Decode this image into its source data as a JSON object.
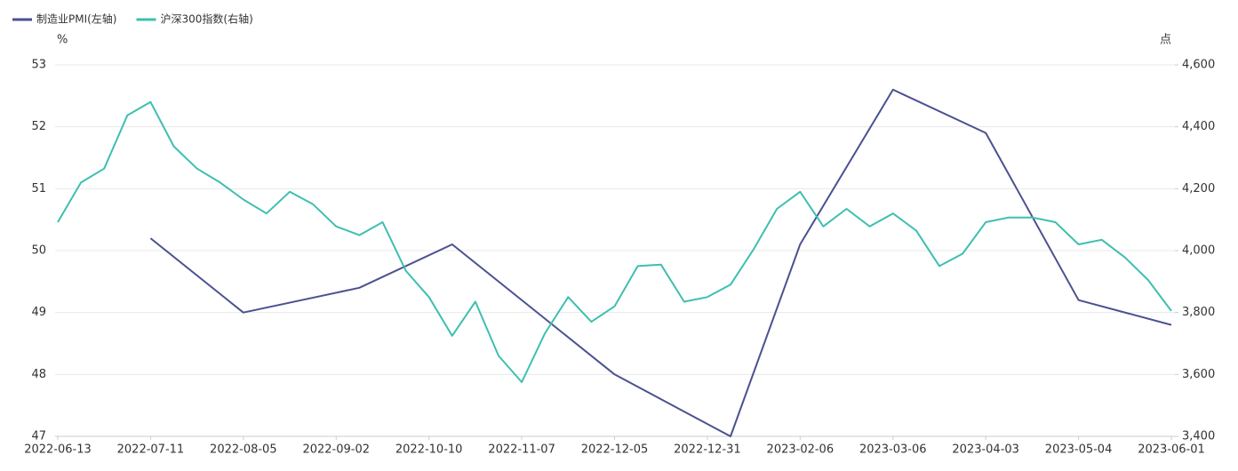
{
  "chart_data": {
    "type": "line",
    "categories": [
      "2022-06-13",
      null,
      null,
      null,
      "2022-07-11",
      null,
      null,
      null,
      "2022-08-05",
      null,
      null,
      null,
      "2022-09-02",
      null,
      null,
      null,
      "2022-10-10",
      null,
      null,
      null,
      "2022-11-07",
      null,
      null,
      null,
      "2022-12-05",
      null,
      null,
      null,
      "2022-12-31",
      null,
      null,
      null,
      "2023-02-06",
      null,
      null,
      null,
      "2023-03-06",
      null,
      null,
      null,
      "2023-04-03",
      null,
      null,
      null,
      "2023-05-04",
      null,
      null,
      null,
      "2023-06-01"
    ],
    "series": [
      {
        "name": "制造业PMI(左轴)",
        "color": "#4a5190",
        "axis": "y",
        "connect_nulls": true,
        "values": [
          null,
          null,
          null,
          null,
          50.2,
          null,
          null,
          null,
          49.0,
          null,
          null,
          null,
          null,
          49.4,
          null,
          null,
          null,
          50.1,
          null,
          null,
          null,
          null,
          null,
          null,
          48.0,
          null,
          null,
          null,
          null,
          47.0,
          null,
          null,
          50.1,
          null,
          null,
          null,
          52.6,
          null,
          null,
          null,
          51.9,
          null,
          null,
          null,
          49.2,
          null,
          null,
          null,
          48.8
        ]
      },
      {
        "name": "沪深300指数(右轴)",
        "color": "#3dbfb0",
        "axis": "y2",
        "values": [
          4092,
          4220,
          4265,
          4437,
          4480,
          4337,
          4265,
          4220,
          4165,
          4120,
          4190,
          4150,
          4078,
          4050,
          4092,
          3935,
          3850,
          3725,
          3835,
          3660,
          3575,
          3733,
          3850,
          3770,
          3820,
          3950,
          3955,
          3835,
          3850,
          3890,
          4005,
          4135,
          4190,
          4078,
          4135,
          4078,
          4120,
          4065,
          3950,
          3990,
          4092,
          4107,
          4107,
          4092,
          4020,
          4035,
          3978,
          3905,
          3805
        ]
      }
    ],
    "y_unit": "%",
    "y2_unit": "点",
    "ylim": [
      47,
      53
    ],
    "yticks": [
      47,
      48,
      49,
      50,
      51,
      52,
      53
    ],
    "y2lim": [
      3400,
      4600
    ],
    "y2ticks": [
      {
        "value": 3400,
        "label": "3,400"
      },
      {
        "value": 3600,
        "label": "3,600"
      },
      {
        "value": 3800,
        "label": "3,800"
      },
      {
        "value": 4000,
        "label": "4,000"
      },
      {
        "value": 4200,
        "label": "4,200"
      },
      {
        "value": 4400,
        "label": "4,400"
      },
      {
        "value": 4600,
        "label": "4,600"
      }
    ],
    "grid": true,
    "legend": "top-left"
  }
}
